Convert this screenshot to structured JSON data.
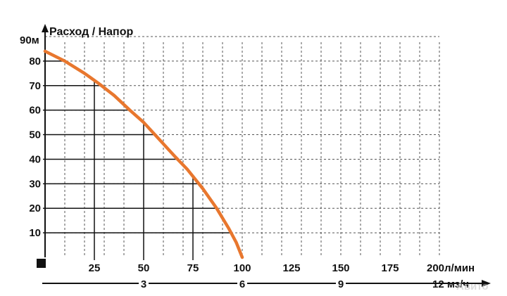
{
  "chart_data": {
    "type": "line",
    "title": "Расход / Напор",
    "y_top_label": "90м",
    "y_ticks": [
      "80",
      "70",
      "60",
      "50",
      "40",
      "30",
      "20",
      "10"
    ],
    "x_ticks_lmin": [
      "25",
      "50",
      "75",
      "100",
      "125",
      "150",
      "175",
      "200л/мин"
    ],
    "x_ticks_m3h": [
      "3",
      "6",
      "9",
      "12 мз/ч"
    ],
    "xlim": [
      0,
      200
    ],
    "ylim": [
      0,
      90
    ],
    "grid": true,
    "series": [
      {
        "color": "#e8772e",
        "x": [
          0,
          10,
          20,
          27,
          35,
          43,
          50,
          58,
          66,
          72,
          80,
          87,
          93,
          97,
          100
        ],
        "y": [
          84,
          80,
          75,
          71,
          66,
          60,
          55,
          48,
          41,
          36,
          28,
          20,
          12,
          6,
          0
        ]
      }
    ],
    "watermark": "Авито"
  }
}
